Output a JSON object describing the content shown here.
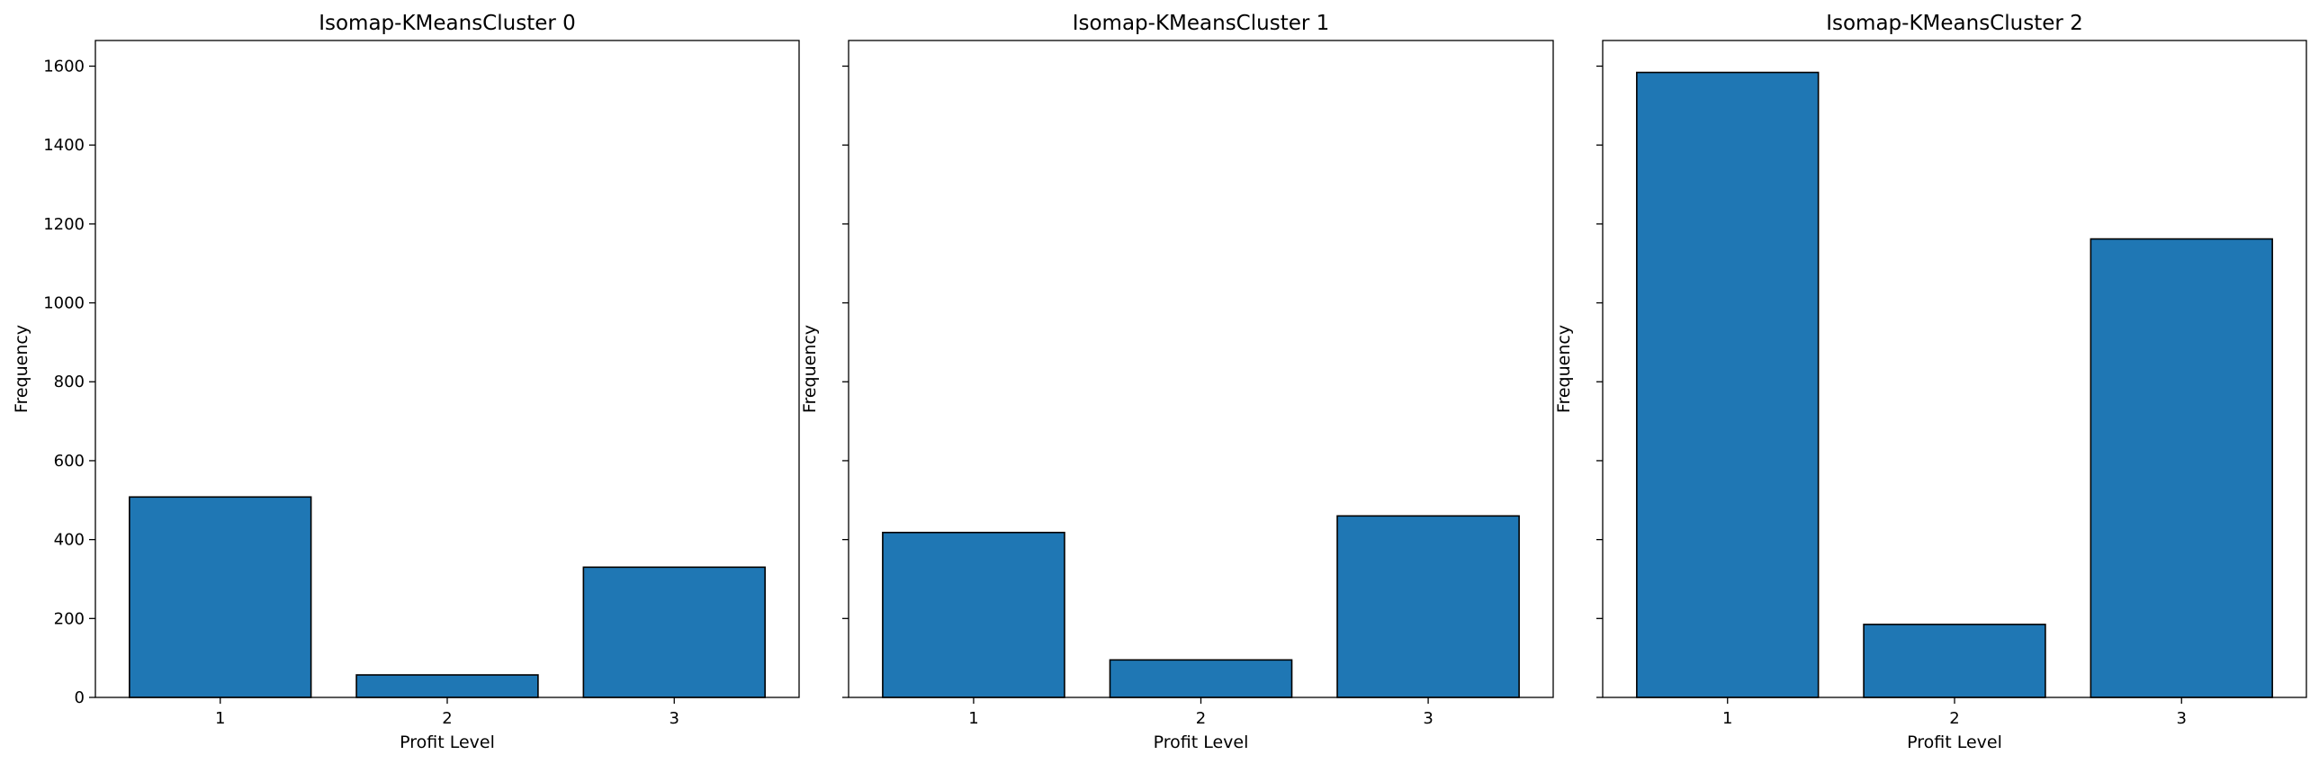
{
  "chart_data": [
    {
      "type": "bar",
      "title": "Isomap-KMeansCluster 0",
      "xlabel": "Profit Level",
      "ylabel": "Frequency",
      "categories": [
        "1",
        "2",
        "3"
      ],
      "values": [
        508,
        57,
        330
      ],
      "ylim": [
        0,
        1665
      ],
      "yticks": [
        0,
        200,
        400,
        600,
        800,
        1000,
        1200,
        1400,
        1600
      ],
      "bar_color": "#1f77b4",
      "edge_color": "#000000",
      "grid": false,
      "legend": "none",
      "ytick_labels_visible": true
    },
    {
      "type": "bar",
      "title": "Isomap-KMeansCluster 1",
      "xlabel": "Profit Level",
      "ylabel": "Frequency",
      "categories": [
        "1",
        "2",
        "3"
      ],
      "values": [
        418,
        95,
        460
      ],
      "ylim": [
        0,
        1665
      ],
      "yticks": [
        0,
        200,
        400,
        600,
        800,
        1000,
        1200,
        1400,
        1600
      ],
      "bar_color": "#1f77b4",
      "edge_color": "#000000",
      "grid": false,
      "legend": "none",
      "ytick_labels_visible": false
    },
    {
      "type": "bar",
      "title": "Isomap-KMeansCluster 2",
      "xlabel": "Profit Level",
      "ylabel": "Frequency",
      "categories": [
        "1",
        "2",
        "3"
      ],
      "values": [
        1584,
        185,
        1162
      ],
      "ylim": [
        0,
        1665
      ],
      "yticks": [
        0,
        200,
        400,
        600,
        800,
        1000,
        1200,
        1400,
        1600
      ],
      "bar_color": "#1f77b4",
      "edge_color": "#000000",
      "grid": false,
      "legend": "none",
      "ytick_labels_visible": false
    }
  ]
}
